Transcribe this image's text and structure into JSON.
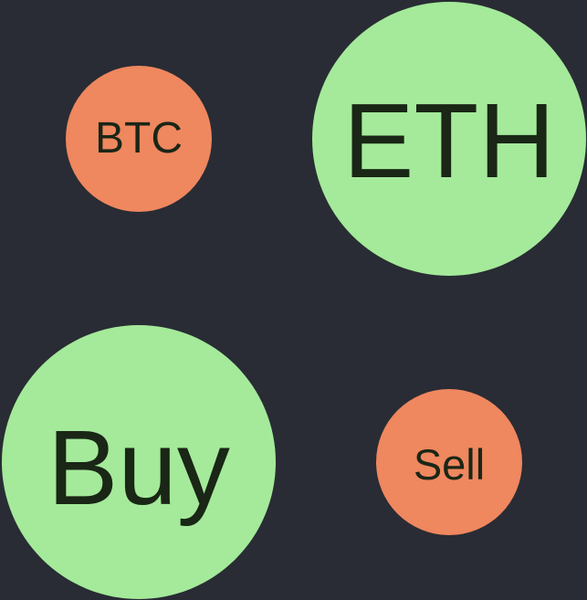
{
  "colors": {
    "background": "#292c34",
    "positive": "#a4ea9a",
    "negative": "#ef875f",
    "text": "#1a2616"
  },
  "bubbles": [
    {
      "id": "btc",
      "label": "BTC",
      "state": "negative",
      "size": "small"
    },
    {
      "id": "eth",
      "label": "ETH",
      "state": "positive",
      "size": "large"
    },
    {
      "id": "buy",
      "label": "Buy",
      "state": "positive",
      "size": "large"
    },
    {
      "id": "sell",
      "label": "Sell",
      "state": "negative",
      "size": "small"
    }
  ]
}
